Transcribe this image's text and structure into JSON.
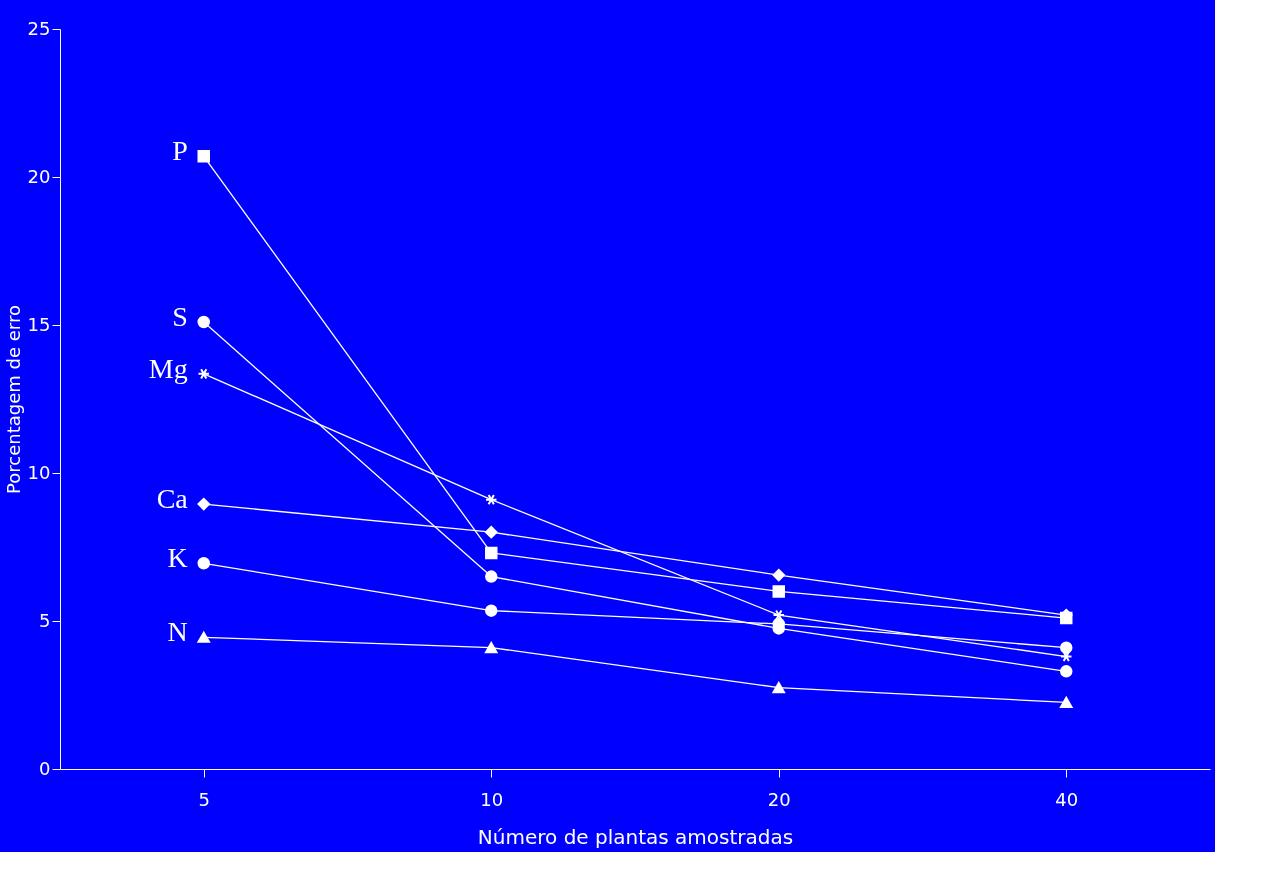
{
  "chart_data": {
    "type": "line",
    "xlabel": "Número de plantas amostradas",
    "ylabel": "Porcentagem de erro",
    "categories": [
      "5",
      "10",
      "20",
      "40"
    ],
    "ylim": [
      0,
      25
    ],
    "yticks": [
      0,
      5,
      10,
      15,
      20,
      25
    ],
    "grid": false,
    "series": [
      {
        "name": "P",
        "color": "#ffffff",
        "marker": "square",
        "values": [
          20.7,
          7.3,
          6.0,
          5.1
        ]
      },
      {
        "name": "S",
        "color": "#ffffff",
        "marker": "circle",
        "values": [
          15.1,
          6.5,
          4.75,
          3.3
        ]
      },
      {
        "name": "Mg",
        "color": "#ffffff",
        "marker": "cross",
        "values": [
          13.35,
          9.1,
          5.2,
          3.8
        ]
      },
      {
        "name": "Ca",
        "color": "#ffffff",
        "marker": "diamond",
        "values": [
          8.95,
          8.0,
          6.55,
          5.2
        ]
      },
      {
        "name": "K",
        "color": "#ffffff",
        "marker": "circle",
        "values": [
          6.95,
          5.35,
          4.9,
          4.1
        ]
      },
      {
        "name": "N",
        "color": "#ffffff",
        "marker": "triangle",
        "values": [
          4.45,
          4.1,
          2.75,
          2.25
        ]
      }
    ]
  }
}
